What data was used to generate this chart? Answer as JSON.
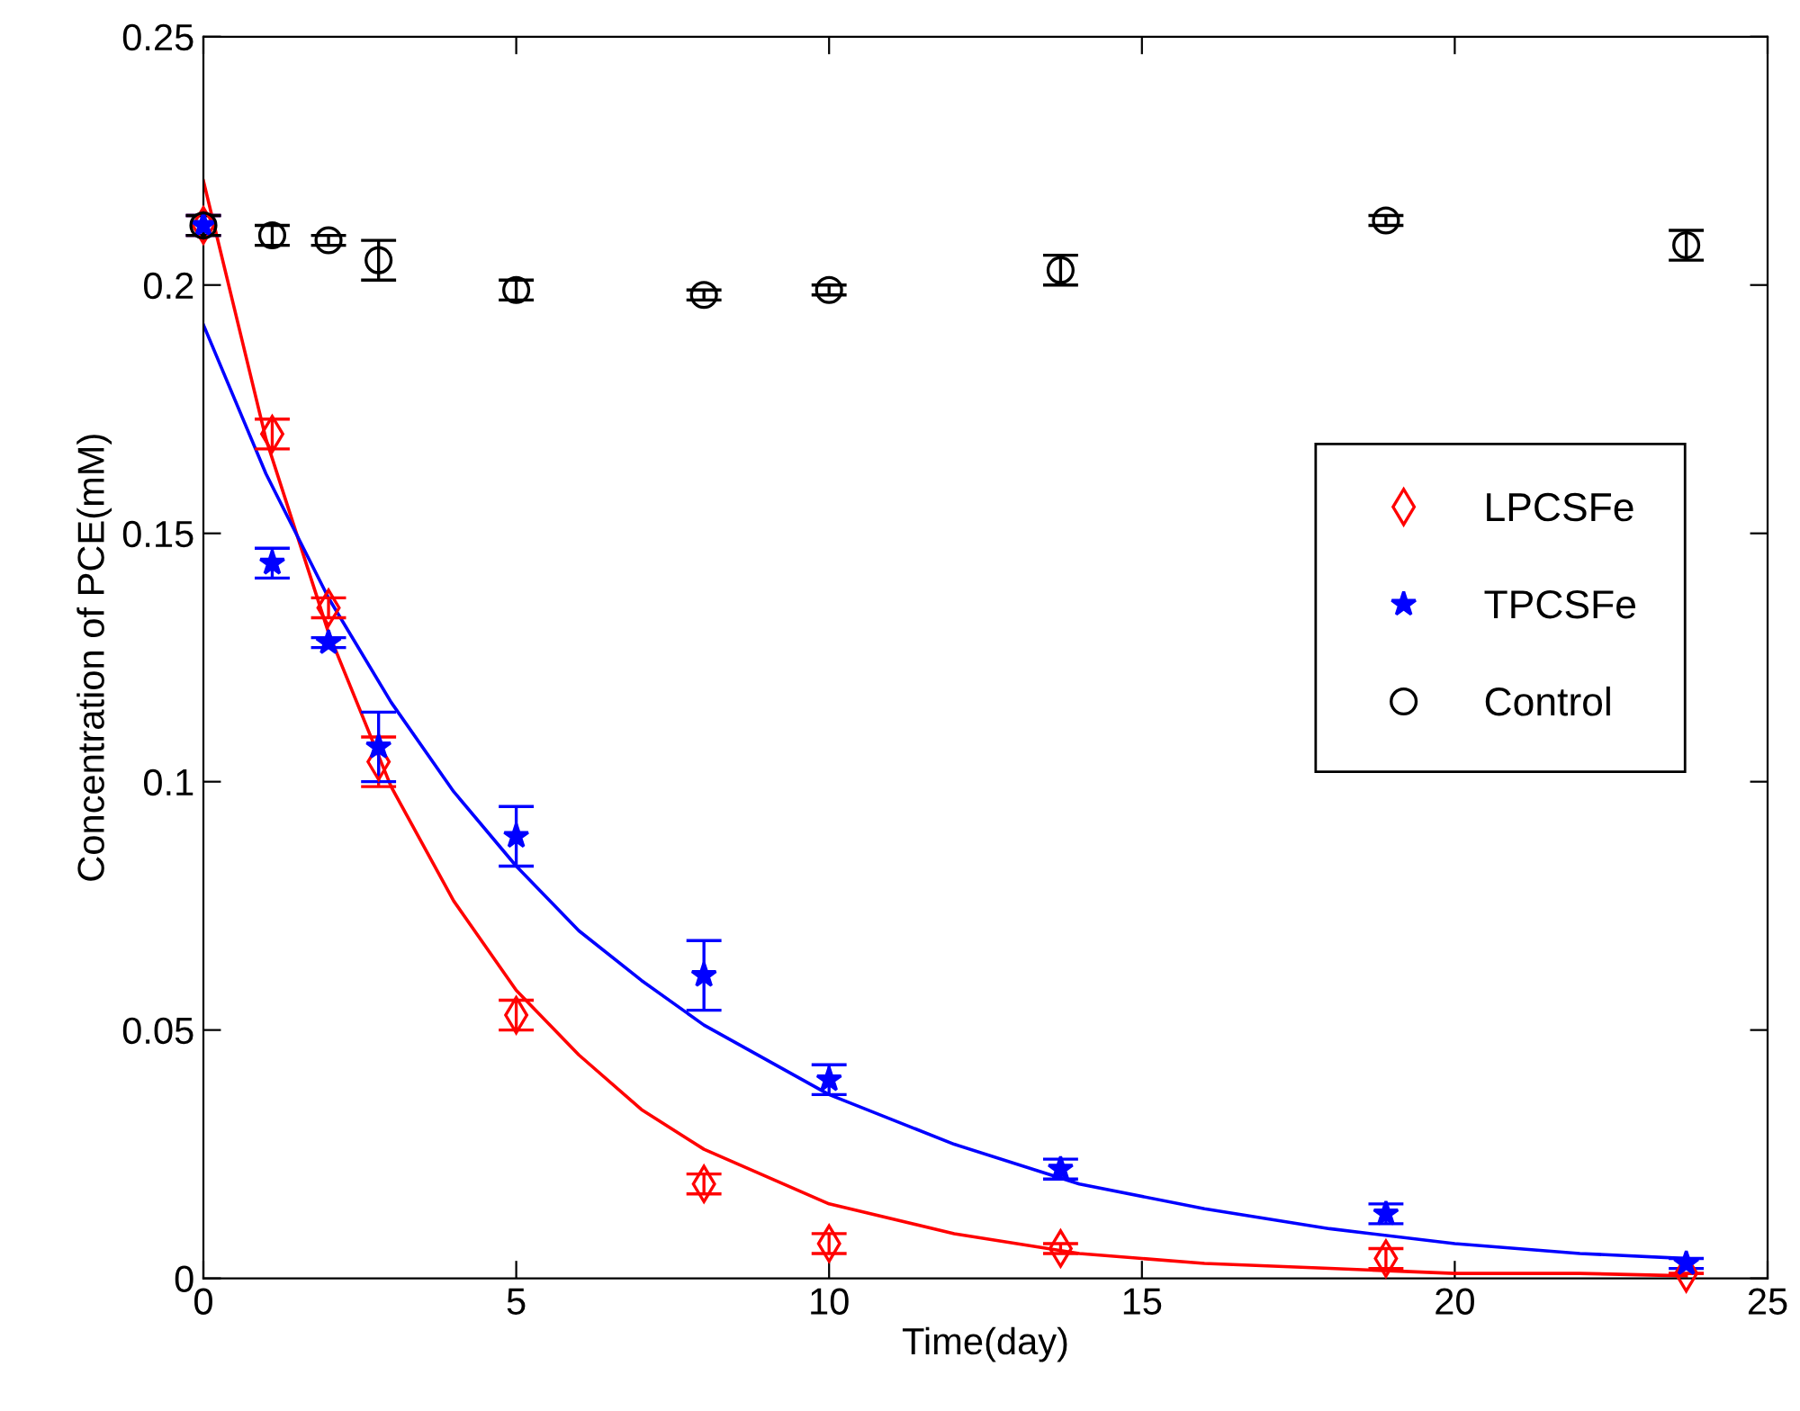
{
  "chart_data": {
    "type": "scatter",
    "xlabel": "Time(day)",
    "ylabel": "Concentration of PCE(mM)",
    "xlim": [
      0,
      25
    ],
    "xticks": [
      0,
      5,
      10,
      15,
      20,
      25
    ],
    "ylim": [
      0,
      0.25
    ],
    "yticks": [
      0,
      0.05,
      0.1,
      0.15,
      0.2,
      0.25
    ],
    "grid": false,
    "legend": "right",
    "series": [
      {
        "name": "LPCSFe",
        "color": "#ff0000",
        "marker": "diamond",
        "x": [
          0,
          1.1,
          2.0,
          2.8,
          5.0,
          8.0,
          10.0,
          13.7,
          18.9,
          23.7
        ],
        "values": [
          0.212,
          0.17,
          0.135,
          0.104,
          0.053,
          0.019,
          0.007,
          0.006,
          0.004,
          0.001
        ],
        "errors": [
          0.002,
          0.003,
          0.002,
          0.005,
          0.003,
          0.002,
          0.002,
          0.001,
          0.002,
          null
        ]
      },
      {
        "name": "TPCSFe",
        "color": "#0000ff",
        "marker": "star",
        "x": [
          0,
          1.1,
          2.0,
          2.8,
          5.0,
          8.0,
          10.0,
          13.7,
          18.9,
          23.7
        ],
        "values": [
          0.212,
          0.144,
          0.128,
          0.107,
          0.089,
          0.061,
          0.04,
          0.022,
          0.013,
          0.003
        ],
        "errors": [
          0.002,
          0.003,
          0.001,
          0.007,
          0.006,
          0.007,
          0.003,
          0.002,
          0.002,
          0.001
        ]
      },
      {
        "name": "Control",
        "color": "#000000",
        "marker": "circle",
        "x": [
          0,
          1.1,
          2.0,
          2.8,
          5.0,
          8.0,
          10.0,
          13.7,
          18.9,
          23.7
        ],
        "values": [
          0.212,
          0.21,
          0.209,
          0.205,
          0.199,
          0.198,
          0.199,
          0.203,
          0.213,
          0.208
        ],
        "errors": [
          0.002,
          0.002,
          0.001,
          0.004,
          0.002,
          0.001,
          0.001,
          0.003,
          0.001,
          0.003
        ]
      },
      {
        "type": "line",
        "color": "#ff0000",
        "marker": "none",
        "line_style": "solid",
        "x": [
          0,
          1,
          2,
          3,
          4,
          5,
          6,
          7,
          8,
          10,
          12,
          14,
          16,
          18,
          20,
          22,
          23.7
        ],
        "values": [
          0.221,
          0.169,
          0.13,
          0.099,
          0.076,
          0.058,
          0.045,
          0.034,
          0.026,
          0.015,
          0.009,
          0.005,
          0.003,
          0.002,
          0.001,
          0.001,
          0.0005
        ]
      },
      {
        "type": "line",
        "color": "#0000ff",
        "marker": "none",
        "line_style": "solid",
        "x": [
          0,
          1,
          2,
          3,
          4,
          5,
          6,
          7,
          8,
          10,
          12,
          14,
          16,
          18,
          20,
          22,
          23.7
        ],
        "values": [
          0.192,
          0.162,
          0.137,
          0.116,
          0.098,
          0.083,
          0.07,
          0.06,
          0.051,
          0.037,
          0.027,
          0.019,
          0.014,
          0.01,
          0.007,
          0.005,
          0.004
        ]
      }
    ]
  }
}
